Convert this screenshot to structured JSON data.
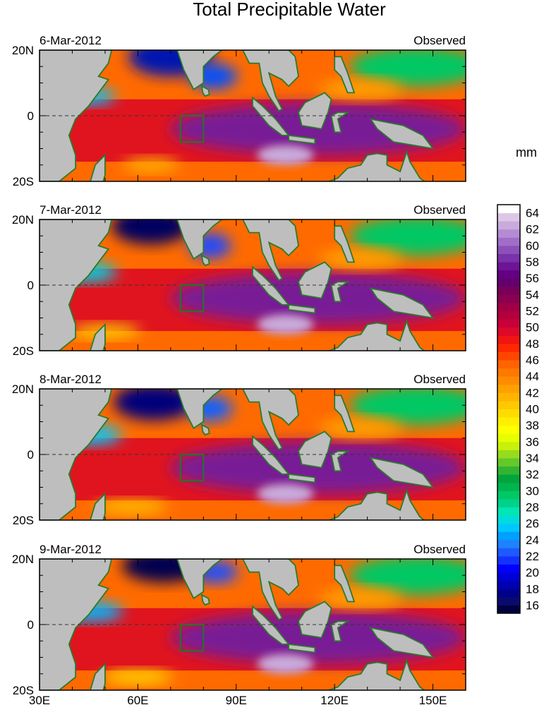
{
  "figure": {
    "title": "Total Precipitable Water",
    "units": "mm",
    "x_ticks": [
      "30E",
      "60E",
      "90E",
      "120E",
      "150E"
    ],
    "y_ticks": [
      "20N",
      "0",
      "20S"
    ]
  },
  "panels": [
    {
      "date": "6-Mar-2012",
      "label": "Observed"
    },
    {
      "date": "7-Mar-2012",
      "label": "Observed"
    },
    {
      "date": "8-Mar-2012",
      "label": "Observed"
    },
    {
      "date": "9-Mar-2012",
      "label": "Observed"
    }
  ],
  "colorbar": {
    "levels": [
      15,
      16,
      17,
      18,
      19,
      20,
      21,
      22,
      23,
      24,
      25,
      26,
      27,
      28,
      29,
      30,
      31,
      32,
      33,
      34,
      35,
      36,
      37,
      38,
      39,
      40,
      41,
      42,
      43,
      44,
      45,
      46,
      47,
      48,
      49,
      50,
      51,
      52,
      53,
      54,
      55,
      56,
      57,
      58,
      59,
      60,
      61,
      62,
      63,
      64,
      65
    ],
    "labels": [
      "16",
      "18",
      "20",
      "22",
      "24",
      "26",
      "28",
      "30",
      "32",
      "34",
      "36",
      "38",
      "40",
      "42",
      "44",
      "46",
      "48",
      "50",
      "52",
      "54",
      "56",
      "58",
      "60",
      "62",
      "64"
    ],
    "colors": [
      "#000040",
      "#0a0a6e",
      "#00008b",
      "#0000b4",
      "#0000d7",
      "#0000ff",
      "#1432ff",
      "#1e5aff",
      "#1e82ff",
      "#00a0ff",
      "#00c8ff",
      "#00dcdc",
      "#00e6b4",
      "#00d28c",
      "#00c864",
      "#00b450",
      "#00a53c",
      "#32b432",
      "#64c828",
      "#96dc1e",
      "#c8f00a",
      "#e6ff00",
      "#ffff00",
      "#fff000",
      "#ffdc00",
      "#ffc800",
      "#ffb400",
      "#ffa000",
      "#ff8c00",
      "#ff7800",
      "#ff6400",
      "#ff4600",
      "#ff2800",
      "#f01414",
      "#dc0a28",
      "#c8003c",
      "#b4003c",
      "#a00046",
      "#8c0050",
      "#78005a",
      "#64006e",
      "#640082",
      "#6e1496",
      "#7832aa",
      "#8c50b9",
      "#a06ec8",
      "#b48cd2",
      "#c8aadc",
      "#dcc8e6",
      "#ffffff"
    ]
  },
  "chart_data": {
    "type": "heatmap",
    "title": "Total Precipitable Water",
    "colorbar_label": "mm",
    "x_range_deg_east": [
      30,
      160
    ],
    "y_range_deg": [
      -20,
      20
    ],
    "x_tick_labels": [
      "30E",
      "60E",
      "90E",
      "120E",
      "150E"
    ],
    "y_tick_labels": [
      "20N",
      "0",
      "20S"
    ],
    "colorbar_range_mm": [
      15,
      65
    ],
    "colorbar_tick_labels": [
      "16",
      "18",
      "20",
      "22",
      "24",
      "26",
      "28",
      "30",
      "32",
      "34",
      "36",
      "38",
      "40",
      "42",
      "44",
      "46",
      "48",
      "50",
      "52",
      "54",
      "56",
      "58",
      "60",
      "62",
      "64"
    ],
    "panels": [
      {
        "date": "6-Mar-2012",
        "label": "Observed"
      },
      {
        "date": "7-Mar-2012",
        "label": "Observed"
      },
      {
        "date": "8-Mar-2012",
        "label": "Observed"
      },
      {
        "date": "9-Mar-2012",
        "label": "Observed"
      }
    ],
    "box_region": {
      "lon": [
        73,
        80
      ],
      "lat": [
        -8,
        0
      ]
    }
  }
}
